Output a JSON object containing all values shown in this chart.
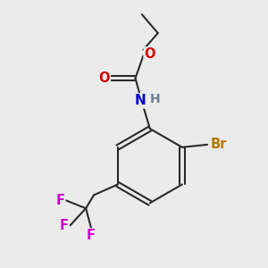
{
  "bg_color": "#ebebeb",
  "bond_color": "#2a2a2a",
  "bond_width": 1.5,
  "atom_colors": {
    "O": "#dd0000",
    "N": "#0000cc",
    "H": "#708090",
    "Br": "#b87800",
    "F": "#cc00cc",
    "C": "#2a2a2a"
  },
  "font_size": 10.5,
  "title": ""
}
